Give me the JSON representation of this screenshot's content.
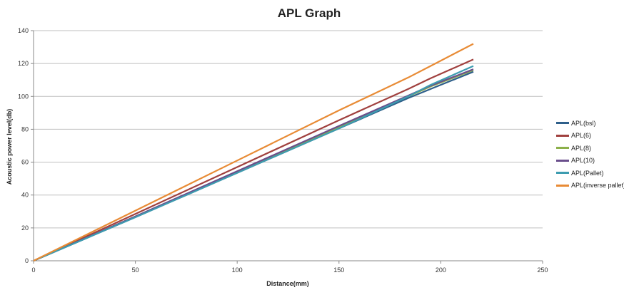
{
  "chart_data": {
    "type": "line",
    "title": "APL Graph",
    "xlabel": "Distance(mm)",
    "ylabel": "Acoustic power level(db)",
    "xlim": [
      0,
      250
    ],
    "ylim": [
      0,
      140
    ],
    "xticks": [
      0,
      50,
      100,
      150,
      200,
      250
    ],
    "yticks": [
      0,
      20,
      40,
      60,
      80,
      100,
      120,
      140
    ],
    "grid": true,
    "legend_position": "right",
    "series": [
      {
        "name": "APL(bsl)",
        "color": "#2E5F8A",
        "x": [
          0,
          50,
          100,
          150,
          184,
          195,
          216
        ],
        "y": [
          0,
          26.5,
          53.5,
          80.5,
          99,
          104.5,
          115
        ]
      },
      {
        "name": "APL(6)",
        "color": "#A0403E",
        "x": [
          0,
          50,
          100,
          150,
          184,
          195,
          216
        ],
        "y": [
          0,
          28.5,
          57,
          85.5,
          104.5,
          111,
          122.5
        ]
      },
      {
        "name": "APL(8)",
        "color": "#8CB04A",
        "x": [
          0,
          50,
          100,
          150,
          184,
          195,
          216
        ],
        "y": [
          0,
          27,
          54,
          81.5,
          100,
          106,
          116
        ]
      },
      {
        "name": "APL(10)",
        "color": "#6A4E8C",
        "x": [
          0,
          50,
          100,
          150,
          184,
          195,
          216
        ],
        "y": [
          0,
          27,
          54.5,
          82,
          100.5,
          106.5,
          116.5
        ]
      },
      {
        "name": "APL(Pallet)",
        "color": "#3D9CB0",
        "x": [
          0,
          50,
          100,
          150,
          184,
          195,
          216
        ],
        "y": [
          0,
          26.5,
          53.5,
          80.5,
          100,
          107,
          118.5
        ]
      },
      {
        "name": "APL(inverse pallet)",
        "color": "#E88B35",
        "x": [
          0,
          50,
          100,
          150,
          184,
          195,
          216
        ],
        "y": [
          0,
          30.5,
          61,
          91.5,
          111.5,
          118.5,
          132
        ]
      }
    ]
  }
}
